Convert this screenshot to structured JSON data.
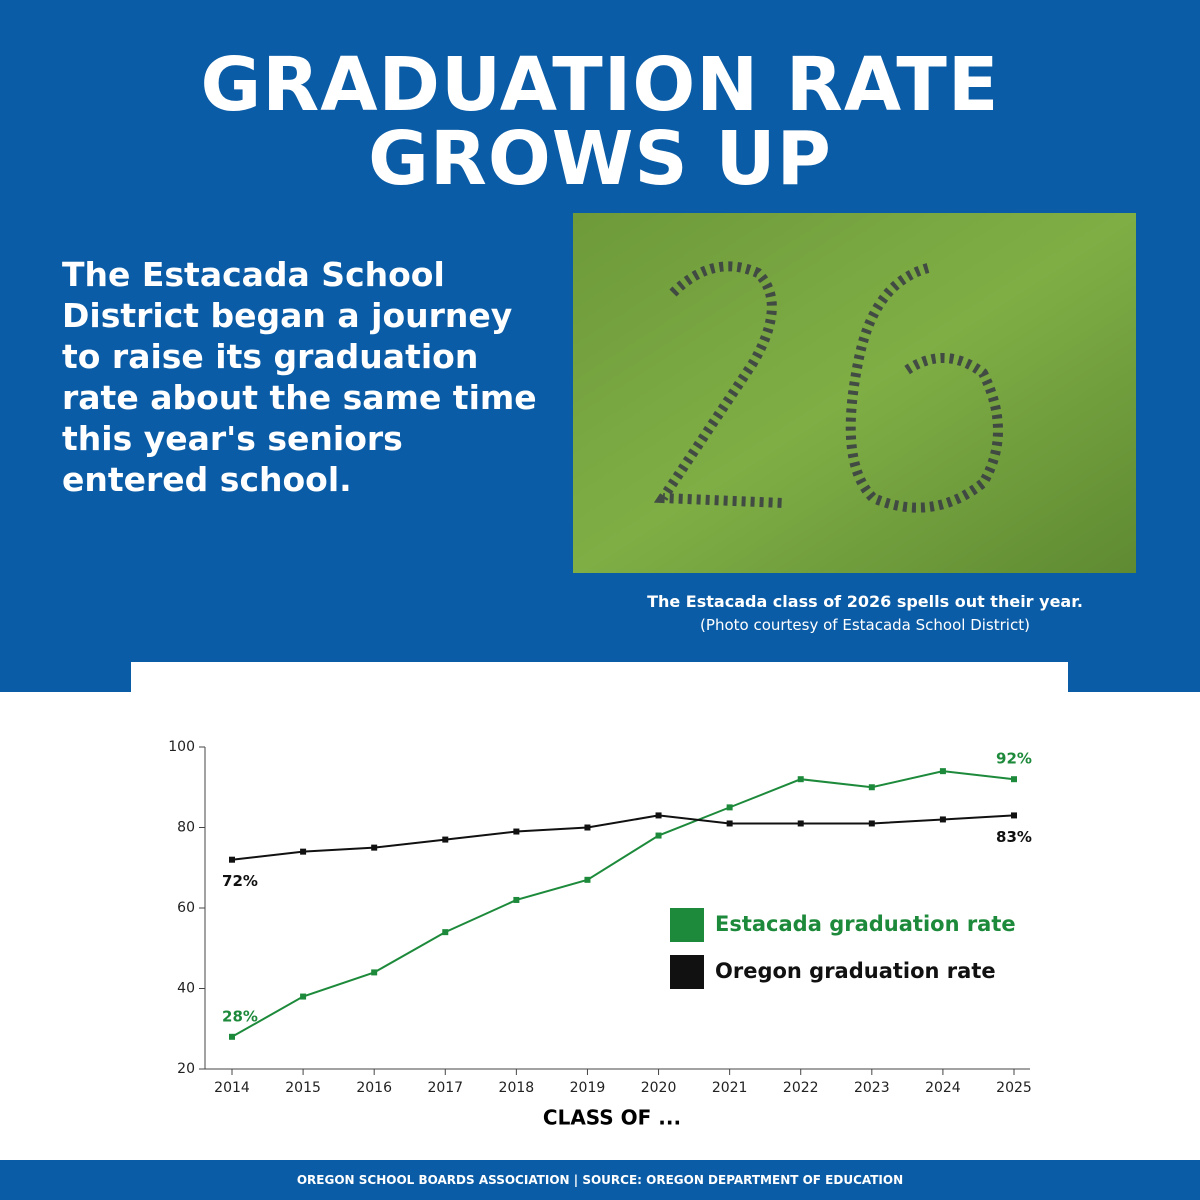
{
  "header": {
    "title": "GRADUATION RATE GROWS UP"
  },
  "intro": "The Estacada School District began a journey to raise its graduation rate about the same time this year's seniors entered school.",
  "photo": {
    "caption": "The Estacada class of 2026 spells out their year.",
    "credit": "(Photo courtesy of Estacada School District)"
  },
  "chart_data": {
    "type": "line",
    "x": [
      2014,
      2015,
      2016,
      2017,
      2018,
      2019,
      2020,
      2021,
      2022,
      2023,
      2024,
      2025
    ],
    "series": [
      {
        "name": "Estacada graduation rate",
        "color": "#1d8a3b",
        "values": [
          28,
          38,
          44,
          54,
          62,
          67,
          78,
          85,
          92,
          90,
          94,
          92
        ],
        "value_labels": [
          "28%",
          null,
          null,
          null,
          null,
          null,
          null,
          null,
          null,
          null,
          null,
          "92%"
        ]
      },
      {
        "name": "Oregon graduation rate",
        "color": "#111111",
        "values": [
          72,
          74,
          75,
          77,
          79,
          80,
          83,
          81,
          81,
          81,
          82,
          83
        ],
        "value_labels": [
          "72%",
          null,
          null,
          null,
          null,
          null,
          null,
          null,
          null,
          null,
          null,
          "83%"
        ]
      }
    ],
    "ylim": [
      20,
      100
    ],
    "yticks": [
      20,
      40,
      60,
      80,
      100
    ],
    "x_label": "CLASS OF ..."
  },
  "footer": "OREGON SCHOOL BOARDS ASSOCIATION | SOURCE: OREGON DEPARTMENT OF EDUCATION"
}
